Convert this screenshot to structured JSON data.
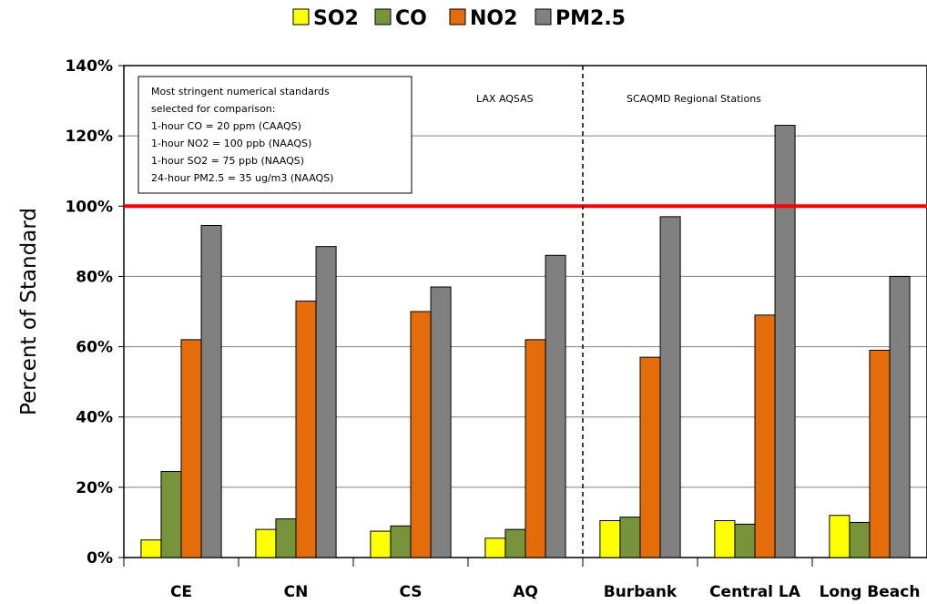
{
  "chart_data": {
    "type": "bar",
    "categories": [
      "CE",
      "CN",
      "CS",
      "AQ",
      "Burbank",
      "Central LA",
      "Long Beach"
    ],
    "series": [
      {
        "name": "SO2",
        "color": "#ffff00",
        "values": [
          5,
          8,
          7.5,
          5.5,
          10.5,
          10.5,
          12
        ]
      },
      {
        "name": "CO",
        "color": "#77933c",
        "values": [
          24.5,
          11,
          9,
          8,
          11.5,
          9.5,
          10
        ]
      },
      {
        "name": "NO2",
        "color": "#e46c0a",
        "values": [
          62,
          73,
          70,
          62,
          57,
          69,
          59
        ]
      },
      {
        "name": "PM2.5",
        "color": "#808080",
        "values": [
          94.5,
          88.5,
          77,
          86,
          97,
          123,
          80
        ]
      }
    ],
    "y_ticks": [
      "0%",
      "20%",
      "40%",
      "60%",
      "80%",
      "100%",
      "120%",
      "140%"
    ],
    "ylim": [
      0,
      140
    ],
    "ylabel": "Percent of Standard",
    "reference_line": {
      "value": 100,
      "color": "#ff0000"
    },
    "divider_after_category": 4,
    "legend_position": "top",
    "grid": true,
    "note_lines": [
      "Most stringent numerical standards",
      "selected for comparison:",
      "1-hour CO = 20 ppm (CAAQS)",
      "1-hour NO2 = 100 ppb (NAAQS)",
      "1-hour SO2 = 75 ppb (NAAQS)",
      "24-hour PM2.5 = 35 ug/m3 (NAAQS)"
    ],
    "region_labels": [
      "LAX AQSAS",
      "SCAQMD Regional Stations"
    ]
  }
}
